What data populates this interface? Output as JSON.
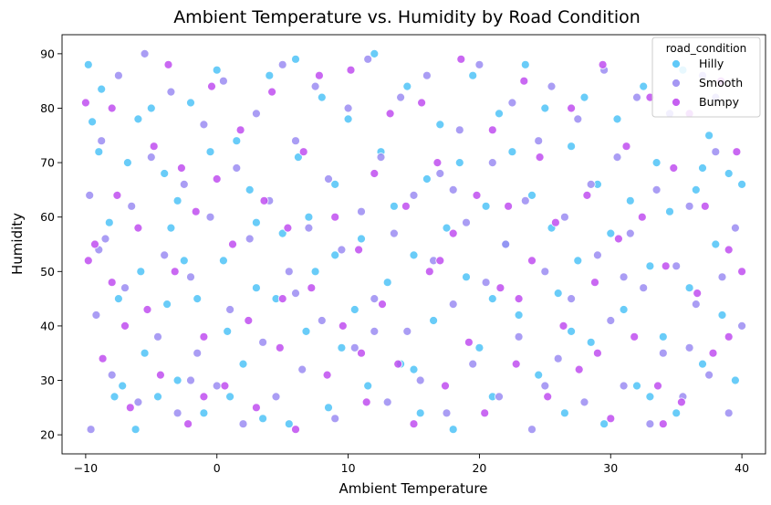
{
  "chart_data": {
    "type": "scatter",
    "title": "Ambient Temperature vs. Humidity by Road Condition",
    "xlabel": "Ambient Temperature",
    "ylabel": "Humidity",
    "xlim": [
      -11.8,
      41.8
    ],
    "ylim": [
      16.5,
      93.5
    ],
    "x_ticks": [
      -10,
      0,
      10,
      20,
      30,
      40
    ],
    "y_ticks": [
      20,
      30,
      40,
      50,
      60,
      70,
      80,
      90
    ],
    "grid": false,
    "legend": {
      "title": "road_condition",
      "placement": "top-right",
      "entries": [
        "Hilly",
        "Smooth",
        "Bumpy"
      ]
    },
    "colors": {
      "Hilly": "#4fc3f7",
      "Smooth": "#9b8cf2",
      "Bumpy": "#c04ef0"
    },
    "series": [
      {
        "name": "Hilly",
        "points": [
          [
            -9.8,
            88
          ],
          [
            -9.5,
            77.5
          ],
          [
            -8.8,
            83.5
          ],
          [
            -8.2,
            59
          ],
          [
            -7.8,
            27
          ],
          [
            -7.5,
            45
          ],
          [
            -7.2,
            29
          ],
          [
            -6.8,
            70
          ],
          [
            -6.2,
            21
          ],
          [
            -6,
            78
          ],
          [
            -5.8,
            50
          ],
          [
            -5.5,
            35
          ],
          [
            -5,
            80
          ],
          [
            -4.5,
            27
          ],
          [
            -4,
            68
          ],
          [
            -3.8,
            44
          ],
          [
            -3.5,
            58
          ],
          [
            -3,
            63
          ],
          [
            -2.5,
            52
          ],
          [
            -2,
            81
          ],
          [
            -1.5,
            45
          ],
          [
            -1,
            24
          ],
          [
            -0.5,
            72
          ],
          [
            0,
            87
          ],
          [
            0.5,
            52
          ],
          [
            0.8,
            39
          ],
          [
            1,
            27
          ],
          [
            1.5,
            74
          ],
          [
            2,
            33
          ],
          [
            2.5,
            65
          ],
          [
            3,
            59
          ],
          [
            3.5,
            23
          ],
          [
            4,
            86
          ],
          [
            4.5,
            45
          ],
          [
            5,
            57
          ],
          [
            5.5,
            22
          ],
          [
            6,
            89
          ],
          [
            6.2,
            71
          ],
          [
            6.8,
            39
          ],
          [
            7,
            60
          ],
          [
            7.5,
            50
          ],
          [
            8,
            82
          ],
          [
            8.5,
            25
          ],
          [
            9,
            66
          ],
          [
            9.5,
            36
          ],
          [
            10,
            78
          ],
          [
            10.5,
            43
          ],
          [
            11,
            56
          ],
          [
            11.5,
            29
          ],
          [
            12,
            90
          ],
          [
            12.5,
            72
          ],
          [
            13,
            48
          ],
          [
            13.5,
            62
          ],
          [
            14,
            33
          ],
          [
            14.5,
            84
          ],
          [
            15,
            53
          ],
          [
            15.5,
            24
          ],
          [
            16,
            67
          ],
          [
            16.5,
            41
          ],
          [
            17,
            77
          ],
          [
            17.5,
            58
          ],
          [
            18,
            21
          ],
          [
            18.5,
            70
          ],
          [
            19,
            49
          ],
          [
            19.5,
            86
          ],
          [
            20,
            36
          ],
          [
            20.5,
            62
          ],
          [
            21,
            27
          ],
          [
            21.5,
            79
          ],
          [
            22,
            55
          ],
          [
            22.5,
            72
          ],
          [
            23,
            42
          ],
          [
            23.5,
            88
          ],
          [
            24,
            64
          ],
          [
            24.5,
            31
          ],
          [
            25,
            80
          ],
          [
            25.5,
            58
          ],
          [
            26,
            46
          ],
          [
            26.5,
            24
          ],
          [
            27,
            73
          ],
          [
            27.5,
            52
          ],
          [
            28,
            82
          ],
          [
            28.5,
            37
          ],
          [
            29,
            66
          ],
          [
            29.5,
            22
          ],
          [
            30,
            57
          ],
          [
            30.5,
            78
          ],
          [
            31,
            43
          ],
          [
            31.5,
            63
          ],
          [
            32,
            29
          ],
          [
            32.5,
            84
          ],
          [
            33,
            51
          ],
          [
            33.5,
            70
          ],
          [
            34,
            38
          ],
          [
            34.5,
            61
          ],
          [
            35,
            24
          ],
          [
            35.5,
            87
          ],
          [
            36,
            47
          ],
          [
            36.5,
            65
          ],
          [
            37,
            33
          ],
          [
            37.5,
            75
          ],
          [
            38,
            55
          ],
          [
            38.5,
            42
          ],
          [
            39,
            68
          ],
          [
            39.5,
            30
          ],
          [
            40,
            66
          ],
          [
            -9,
            72
          ],
          [
            -3,
            30
          ],
          [
            3,
            47
          ],
          [
            9,
            53
          ],
          [
            15,
            32
          ],
          [
            21,
            45
          ],
          [
            27,
            39
          ],
          [
            33,
            27
          ],
          [
            37,
            69
          ]
        ]
      },
      {
        "name": "Smooth",
        "points": [
          [
            -9.7,
            64
          ],
          [
            -9.6,
            21
          ],
          [
            -9.2,
            42
          ],
          [
            -8.8,
            74
          ],
          [
            -8.5,
            56
          ],
          [
            -8,
            31
          ],
          [
            -7.5,
            86
          ],
          [
            -7,
            47
          ],
          [
            -6.5,
            62
          ],
          [
            -6,
            26
          ],
          [
            -5.5,
            90
          ],
          [
            -5,
            71
          ],
          [
            -4.5,
            38
          ],
          [
            -4,
            53
          ],
          [
            -3.5,
            83
          ],
          [
            -3,
            24
          ],
          [
            -2.5,
            66
          ],
          [
            -2,
            49
          ],
          [
            -1.5,
            35
          ],
          [
            -1,
            77
          ],
          [
            -0.5,
            60
          ],
          [
            0,
            29
          ],
          [
            0.5,
            85
          ],
          [
            1,
            43
          ],
          [
            1.5,
            69
          ],
          [
            2,
            22
          ],
          [
            2.5,
            56
          ],
          [
            3,
            79
          ],
          [
            3.5,
            37
          ],
          [
            4,
            63
          ],
          [
            4.5,
            27
          ],
          [
            5,
            88
          ],
          [
            5.5,
            50
          ],
          [
            6,
            74
          ],
          [
            6.5,
            32
          ],
          [
            7,
            58
          ],
          [
            7.5,
            84
          ],
          [
            8,
            41
          ],
          [
            8.5,
            67
          ],
          [
            9,
            23
          ],
          [
            9.5,
            54
          ],
          [
            10,
            80
          ],
          [
            10.5,
            36
          ],
          [
            11,
            61
          ],
          [
            11.5,
            89
          ],
          [
            12,
            45
          ],
          [
            12.5,
            71
          ],
          [
            13,
            26
          ],
          [
            13.5,
            57
          ],
          [
            14,
            82
          ],
          [
            14.5,
            39
          ],
          [
            15,
            64
          ],
          [
            15.5,
            30
          ],
          [
            16,
            86
          ],
          [
            16.5,
            52
          ],
          [
            17,
            68
          ],
          [
            17.5,
            24
          ],
          [
            18,
            44
          ],
          [
            18.5,
            76
          ],
          [
            19,
            59
          ],
          [
            19.5,
            33
          ],
          [
            20,
            88
          ],
          [
            20.5,
            48
          ],
          [
            21,
            70
          ],
          [
            21.5,
            27
          ],
          [
            22,
            55
          ],
          [
            22.5,
            81
          ],
          [
            23,
            38
          ],
          [
            23.5,
            63
          ],
          [
            24,
            21
          ],
          [
            24.5,
            74
          ],
          [
            25,
            50
          ],
          [
            25.5,
            84
          ],
          [
            26,
            34
          ],
          [
            26.5,
            60
          ],
          [
            27,
            45
          ],
          [
            27.5,
            78
          ],
          [
            28,
            26
          ],
          [
            28.5,
            66
          ],
          [
            29,
            53
          ],
          [
            29.5,
            87
          ],
          [
            30,
            41
          ],
          [
            30.5,
            71
          ],
          [
            31,
            29
          ],
          [
            31.5,
            57
          ],
          [
            32,
            82
          ],
          [
            32.5,
            47
          ],
          [
            33,
            22
          ],
          [
            33.5,
            65
          ],
          [
            34,
            35
          ],
          [
            34.5,
            79
          ],
          [
            35,
            51
          ],
          [
            35.5,
            27
          ],
          [
            36,
            62
          ],
          [
            36.5,
            44
          ],
          [
            37,
            86
          ],
          [
            37.5,
            31
          ],
          [
            38,
            72
          ],
          [
            38.5,
            49
          ],
          [
            39,
            24
          ],
          [
            39.5,
            58
          ],
          [
            40,
            40
          ],
          [
            -9,
            54
          ],
          [
            -2,
            30
          ],
          [
            6,
            46
          ],
          [
            12,
            39
          ],
          [
            18,
            65
          ],
          [
            25,
            29
          ],
          [
            31,
            49
          ],
          [
            36,
            36
          ],
          [
            38,
            82
          ]
        ]
      },
      {
        "name": "Bumpy",
        "points": [
          [
            -10,
            81
          ],
          [
            -9.8,
            52
          ],
          [
            -9.3,
            55
          ],
          [
            -8.7,
            34
          ],
          [
            -8,
            80
          ],
          [
            -7.6,
            64
          ],
          [
            -7,
            40
          ],
          [
            -6.6,
            25
          ],
          [
            -6,
            58
          ],
          [
            -5.3,
            43
          ],
          [
            -4.8,
            73
          ],
          [
            -4.3,
            31
          ],
          [
            -3.7,
            88
          ],
          [
            -3.2,
            50
          ],
          [
            -2.7,
            69
          ],
          [
            -2.2,
            22
          ],
          [
            -1.6,
            61
          ],
          [
            -1,
            38
          ],
          [
            -0.4,
            84
          ],
          [
            0,
            67
          ],
          [
            0.6,
            29
          ],
          [
            1.2,
            55
          ],
          [
            1.8,
            76
          ],
          [
            2.4,
            41
          ],
          [
            3,
            25
          ],
          [
            3.6,
            63
          ],
          [
            4.2,
            83
          ],
          [
            4.8,
            36
          ],
          [
            5.4,
            58
          ],
          [
            6,
            21
          ],
          [
            6.6,
            72
          ],
          [
            7.2,
            47
          ],
          [
            7.8,
            86
          ],
          [
            8.4,
            31
          ],
          [
            9,
            60
          ],
          [
            9.6,
            40
          ],
          [
            10.2,
            87
          ],
          [
            10.8,
            54
          ],
          [
            11.4,
            26
          ],
          [
            12,
            68
          ],
          [
            12.6,
            44
          ],
          [
            13.2,
            79
          ],
          [
            13.8,
            33
          ],
          [
            14.4,
            62
          ],
          [
            15,
            22
          ],
          [
            15.6,
            81
          ],
          [
            16.2,
            50
          ],
          [
            16.8,
            70
          ],
          [
            17.4,
            29
          ],
          [
            18,
            57
          ],
          [
            18.6,
            89
          ],
          [
            19.2,
            37
          ],
          [
            19.8,
            64
          ],
          [
            20.4,
            24
          ],
          [
            21,
            76
          ],
          [
            21.6,
            47
          ],
          [
            22.2,
            62
          ],
          [
            22.8,
            33
          ],
          [
            23.4,
            85
          ],
          [
            24,
            52
          ],
          [
            24.6,
            71
          ],
          [
            25.2,
            27
          ],
          [
            25.8,
            59
          ],
          [
            26.4,
            40
          ],
          [
            27,
            80
          ],
          [
            27.6,
            32
          ],
          [
            28.2,
            64
          ],
          [
            28.8,
            48
          ],
          [
            29.4,
            88
          ],
          [
            30,
            23
          ],
          [
            30.6,
            56
          ],
          [
            31.2,
            73
          ],
          [
            31.8,
            38
          ],
          [
            32.4,
            60
          ],
          [
            33,
            82
          ],
          [
            33.6,
            29
          ],
          [
            34.2,
            51
          ],
          [
            34.8,
            69
          ],
          [
            35.4,
            26
          ],
          [
            36,
            79
          ],
          [
            36.6,
            46
          ],
          [
            37.2,
            62
          ],
          [
            37.8,
            35
          ],
          [
            38.4,
            85
          ],
          [
            39,
            54
          ],
          [
            39.6,
            72
          ],
          [
            40,
            50
          ],
          [
            -8,
            48
          ],
          [
            -1,
            27
          ],
          [
            5,
            45
          ],
          [
            11,
            35
          ],
          [
            17,
            52
          ],
          [
            23,
            45
          ],
          [
            29,
            35
          ],
          [
            34,
            22
          ],
          [
            39,
            38
          ]
        ]
      }
    ]
  }
}
